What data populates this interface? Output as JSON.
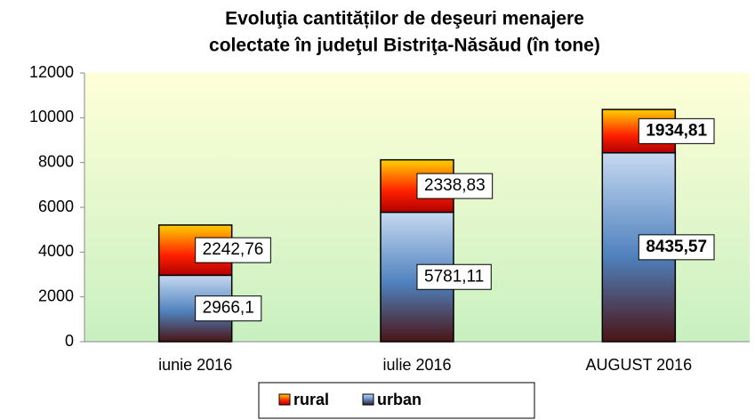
{
  "chart_data": {
    "type": "bar",
    "stacked": true,
    "title": [
      "Evoluţia cantităților de deşeuri menajere",
      "colectate în judeţul Bistriţa-Năsăud (în tone)"
    ],
    "categories": [
      "iunie 2016",
      "iulie 2016",
      "AUGUST 2016"
    ],
    "series": [
      {
        "name": "urban",
        "color": "#4f81bd",
        "values": [
          2966.1,
          5781.11,
          8435.57
        ],
        "value_labels": [
          "2966,1",
          "5781,11",
          "8435,57"
        ]
      },
      {
        "name": "rural",
        "color": "#ff2000",
        "values": [
          2242.76,
          2338.83,
          1934.81
        ],
        "value_labels": [
          "2242,76",
          "2338,83",
          "1934,81"
        ]
      }
    ],
    "ylim": [
      0,
      12000
    ],
    "yticks": [
      0,
      2000,
      4000,
      6000,
      8000,
      10000,
      12000
    ],
    "legend": "bottom"
  }
}
